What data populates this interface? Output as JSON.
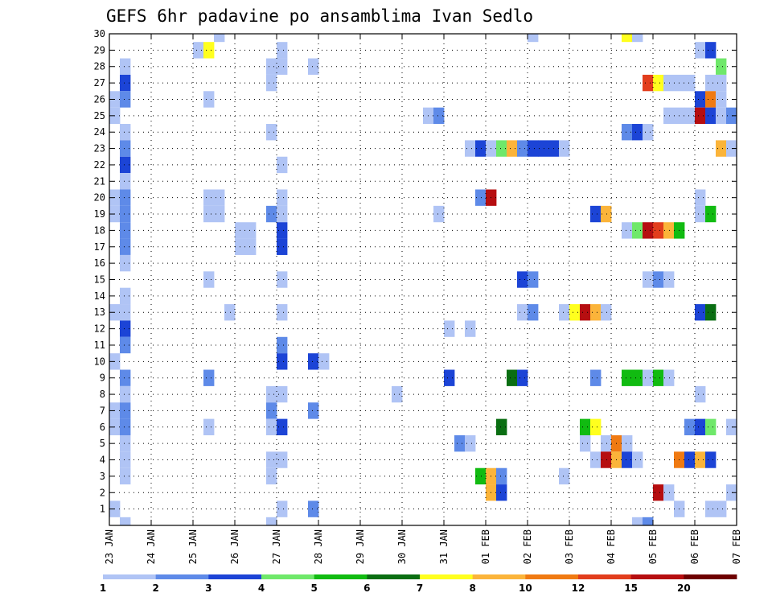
{
  "chart_data": {
    "type": "heatmap",
    "title": "GEFS 6hr padavine po ansamblima Ivan Sedlo",
    "x_tick_labels": [
      "23 JAN",
      "24 JAN",
      "25 JAN",
      "26 JAN",
      "27 JAN",
      "28 JAN",
      "29 JAN",
      "30 JAN",
      "31 JAN",
      "01 FEB",
      "02 FEB",
      "03 FEB",
      "04 FEB",
      "05 FEB",
      "06 FEB",
      "07 FEB"
    ],
    "y_tick_labels": [
      "1",
      "2",
      "3",
      "4",
      "5",
      "6",
      "7",
      "8",
      "9",
      "10",
      "11",
      "12",
      "13",
      "14",
      "15",
      "16",
      "17",
      "18",
      "19",
      "20",
      "21",
      "22",
      "23",
      "24",
      "25",
      "26",
      "27",
      "28",
      "29",
      "30"
    ],
    "x_range_days": [
      0,
      15
    ],
    "y_range": [
      0,
      30
    ],
    "grid": true,
    "legend_placement": "bottom",
    "legend_bins": [
      {
        "label": "1",
        "color": "#b0c4f5"
      },
      {
        "label": "2",
        "color": "#5e8ae8"
      },
      {
        "label": "3",
        "color": "#1c44d6"
      },
      {
        "label": "4",
        "color": "#6fe86a"
      },
      {
        "label": "5",
        "color": "#11bb11"
      },
      {
        "label": "6",
        "color": "#0a6e12"
      },
      {
        "label": "7",
        "color": "#ffff1e"
      },
      {
        "label": "8",
        "color": "#fbb43a"
      },
      {
        "label": "10",
        "color": "#f07a12"
      },
      {
        "label": "12",
        "color": "#e23d1c"
      },
      {
        "label": "15",
        "color": "#b60e10"
      },
      {
        "label": "20",
        "color": "#6e0000"
      }
    ],
    "legend_labels": [
      "1",
      "2",
      "3",
      "4",
      "5",
      "6",
      "7",
      "8",
      "10",
      "12",
      "15",
      "20"
    ],
    "colors": [
      "#b0c4f5",
      "#5e8ae8",
      "#1c44d6",
      "#6fe86a",
      "#11bb11",
      "#0a6e12",
      "#ffff1e",
      "#fbb43a",
      "#f07a12",
      "#e23d1c",
      "#b60e10",
      "#6e0000"
    ],
    "rows": [
      {
        "member": 30,
        "runs": [
          [
            10,
            1,
            0
          ],
          [
            40,
            1,
            0
          ],
          [
            49,
            1,
            6
          ],
          [
            50,
            1,
            0
          ]
        ]
      },
      {
        "member": 29,
        "runs": [
          [
            8,
            1,
            0
          ],
          [
            9,
            1,
            6
          ],
          [
            16,
            1,
            0
          ],
          [
            56,
            1,
            0
          ],
          [
            57,
            1,
            2
          ]
        ]
      },
      {
        "member": 28,
        "runs": [
          [
            1,
            1,
            0
          ],
          [
            15,
            2,
            0
          ],
          [
            19,
            1,
            0
          ],
          [
            58,
            1,
            3
          ]
        ]
      },
      {
        "member": 27,
        "runs": [
          [
            1,
            1,
            2
          ],
          [
            15,
            1,
            0
          ],
          [
            51,
            1,
            9
          ],
          [
            52,
            1,
            6
          ],
          [
            53,
            3,
            0
          ],
          [
            57,
            2,
            0
          ]
        ]
      },
      {
        "member": 26,
        "runs": [
          [
            0,
            1,
            0
          ],
          [
            1,
            1,
            1
          ],
          [
            9,
            1,
            0
          ],
          [
            56,
            1,
            2
          ],
          [
            57,
            1,
            8
          ],
          [
            58,
            1,
            0
          ]
        ]
      },
      {
        "member": 25,
        "runs": [
          [
            0,
            1,
            0
          ],
          [
            30,
            1,
            0
          ],
          [
            31,
            1,
            1
          ],
          [
            53,
            2,
            0
          ],
          [
            55,
            1,
            0
          ],
          [
            56,
            1,
            10
          ],
          [
            57,
            1,
            2
          ],
          [
            58,
            1,
            0
          ],
          [
            59,
            1,
            1
          ]
        ]
      },
      {
        "member": 24,
        "runs": [
          [
            1,
            1,
            0
          ],
          [
            15,
            1,
            0
          ],
          [
            49,
            1,
            1
          ],
          [
            50,
            1,
            2
          ],
          [
            51,
            1,
            0
          ]
        ]
      },
      {
        "member": 23,
        "runs": [
          [
            1,
            1,
            1
          ],
          [
            34,
            1,
            0
          ],
          [
            35,
            1,
            2
          ],
          [
            36,
            1,
            0
          ],
          [
            37,
            1,
            3
          ],
          [
            38,
            1,
            7
          ],
          [
            39,
            1,
            1
          ],
          [
            40,
            1,
            2
          ],
          [
            41,
            2,
            2
          ],
          [
            43,
            1,
            0
          ],
          [
            58,
            1,
            7
          ],
          [
            59,
            1,
            0
          ]
        ]
      },
      {
        "member": 22,
        "runs": [
          [
            1,
            1,
            2
          ],
          [
            16,
            1,
            0
          ]
        ]
      },
      {
        "member": 21,
        "runs": [
          [
            1,
            1,
            0
          ]
        ]
      },
      {
        "member": 20,
        "runs": [
          [
            0,
            1,
            0
          ],
          [
            1,
            1,
            1
          ],
          [
            9,
            2,
            0
          ],
          [
            16,
            1,
            0
          ],
          [
            35,
            1,
            1
          ],
          [
            36,
            1,
            10
          ],
          [
            56,
            1,
            0
          ]
        ]
      },
      {
        "member": 19,
        "runs": [
          [
            0,
            1,
            0
          ],
          [
            1,
            1,
            1
          ],
          [
            9,
            2,
            0
          ],
          [
            15,
            1,
            1
          ],
          [
            16,
            1,
            0
          ],
          [
            31,
            1,
            0
          ],
          [
            46,
            1,
            2
          ],
          [
            47,
            1,
            7
          ],
          [
            56,
            1,
            0
          ],
          [
            57,
            1,
            4
          ]
        ]
      },
      {
        "member": 18,
        "runs": [
          [
            1,
            1,
            1
          ],
          [
            12,
            2,
            0
          ],
          [
            16,
            1,
            2
          ],
          [
            49,
            1,
            0
          ],
          [
            50,
            1,
            3
          ],
          [
            51,
            1,
            10
          ],
          [
            52,
            1,
            9
          ],
          [
            53,
            1,
            7
          ],
          [
            54,
            1,
            4
          ]
        ]
      },
      {
        "member": 17,
        "runs": [
          [
            1,
            1,
            1
          ],
          [
            12,
            2,
            0
          ],
          [
            16,
            1,
            2
          ]
        ]
      },
      {
        "member": 16,
        "runs": [
          [
            1,
            1,
            0
          ]
        ]
      },
      {
        "member": 15,
        "runs": [
          [
            9,
            1,
            0
          ],
          [
            16,
            1,
            0
          ],
          [
            39,
            1,
            2
          ],
          [
            40,
            1,
            1
          ],
          [
            51,
            1,
            0
          ],
          [
            52,
            1,
            1
          ],
          [
            53,
            1,
            0
          ]
        ]
      },
      {
        "member": 14,
        "runs": [
          [
            1,
            1,
            0
          ]
        ]
      },
      {
        "member": 13,
        "runs": [
          [
            0,
            1,
            0
          ],
          [
            1,
            1,
            0
          ],
          [
            11,
            1,
            0
          ],
          [
            16,
            1,
            0
          ],
          [
            39,
            1,
            0
          ],
          [
            40,
            1,
            1
          ],
          [
            43,
            1,
            0
          ],
          [
            44,
            1,
            6
          ],
          [
            45,
            1,
            10
          ],
          [
            46,
            1,
            7
          ],
          [
            47,
            1,
            0
          ],
          [
            56,
            1,
            2
          ],
          [
            57,
            1,
            5
          ]
        ]
      },
      {
        "member": 12,
        "runs": [
          [
            1,
            1,
            2
          ],
          [
            32,
            1,
            0
          ],
          [
            34,
            1,
            0
          ]
        ]
      },
      {
        "member": 11,
        "runs": [
          [
            1,
            1,
            1
          ],
          [
            16,
            1,
            1
          ]
        ]
      },
      {
        "member": 10,
        "runs": [
          [
            0,
            1,
            0
          ],
          [
            16,
            1,
            2
          ],
          [
            19,
            1,
            2
          ],
          [
            20,
            1,
            0
          ]
        ]
      },
      {
        "member": 9,
        "runs": [
          [
            1,
            1,
            1
          ],
          [
            9,
            1,
            1
          ],
          [
            32,
            1,
            2
          ],
          [
            38,
            1,
            5
          ],
          [
            39,
            1,
            2
          ],
          [
            46,
            1,
            1
          ],
          [
            49,
            2,
            4
          ],
          [
            51,
            1,
            0
          ],
          [
            52,
            1,
            4
          ],
          [
            53,
            1,
            0
          ]
        ]
      },
      {
        "member": 8,
        "runs": [
          [
            1,
            1,
            0
          ],
          [
            15,
            2,
            0
          ],
          [
            27,
            1,
            0
          ],
          [
            56,
            1,
            0
          ]
        ]
      },
      {
        "member": 7,
        "runs": [
          [
            0,
            1,
            0
          ],
          [
            1,
            1,
            1
          ],
          [
            15,
            1,
            1
          ],
          [
            19,
            1,
            1
          ]
        ]
      },
      {
        "member": 6,
        "runs": [
          [
            0,
            1,
            0
          ],
          [
            1,
            1,
            1
          ],
          [
            9,
            1,
            0
          ],
          [
            15,
            1,
            0
          ],
          [
            16,
            1,
            2
          ],
          [
            37,
            1,
            5
          ],
          [
            45,
            1,
            4
          ],
          [
            46,
            1,
            6
          ],
          [
            55,
            1,
            1
          ],
          [
            56,
            1,
            2
          ],
          [
            57,
            1,
            3
          ],
          [
            59,
            1,
            0
          ]
        ]
      },
      {
        "member": 5,
        "runs": [
          [
            1,
            1,
            0
          ],
          [
            33,
            1,
            1
          ],
          [
            34,
            1,
            0
          ],
          [
            45,
            1,
            0
          ],
          [
            47,
            1,
            0
          ],
          [
            48,
            1,
            8
          ],
          [
            49,
            1,
            0
          ]
        ]
      },
      {
        "member": 4,
        "runs": [
          [
            1,
            1,
            0
          ],
          [
            15,
            2,
            0
          ],
          [
            46,
            1,
            0
          ],
          [
            47,
            1,
            10
          ],
          [
            48,
            1,
            7
          ],
          [
            49,
            1,
            2
          ],
          [
            50,
            1,
            0
          ],
          [
            54,
            1,
            8
          ],
          [
            55,
            1,
            2
          ],
          [
            56,
            1,
            7
          ],
          [
            57,
            1,
            2
          ]
        ]
      },
      {
        "member": 3,
        "runs": [
          [
            1,
            1,
            0
          ],
          [
            15,
            1,
            0
          ],
          [
            35,
            1,
            4
          ],
          [
            36,
            1,
            7
          ],
          [
            37,
            1,
            1
          ],
          [
            43,
            1,
            0
          ]
        ]
      },
      {
        "member": 2,
        "runs": [
          [
            36,
            1,
            7
          ],
          [
            37,
            1,
            2
          ],
          [
            52,
            1,
            10
          ],
          [
            53,
            1,
            0
          ],
          [
            59,
            1,
            0
          ]
        ]
      },
      {
        "member": 1,
        "runs": [
          [
            0,
            1,
            0
          ],
          [
            16,
            1,
            0
          ],
          [
            19,
            1,
            1
          ],
          [
            54,
            1,
            0
          ],
          [
            57,
            2,
            0
          ]
        ]
      },
      {
        "member": 0,
        "runs": [
          [
            1,
            1,
            0
          ],
          [
            15,
            1,
            0
          ],
          [
            50,
            1,
            0
          ],
          [
            51,
            1,
            1
          ]
        ]
      }
    ]
  }
}
